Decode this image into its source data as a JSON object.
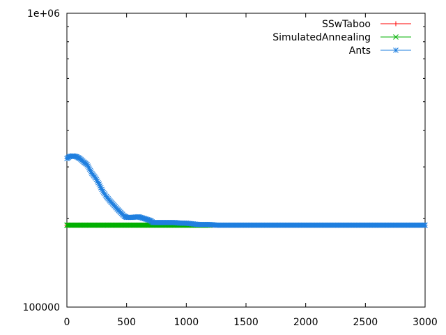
{
  "chart_data": {
    "type": "line",
    "title": "",
    "xlabel": "",
    "ylabel": "",
    "xlim": [
      0,
      3000
    ],
    "ylim": [
      100000,
      1000000
    ],
    "yscale": "log",
    "grid": false,
    "legend_position": "top-right",
    "x_ticks": [
      {
        "value": 0,
        "label": "0"
      },
      {
        "value": 500,
        "label": "500"
      },
      {
        "value": 1000,
        "label": "1000"
      },
      {
        "value": 1500,
        "label": "1500"
      },
      {
        "value": 2000,
        "label": "2000"
      },
      {
        "value": 2500,
        "label": "2500"
      },
      {
        "value": 3000,
        "label": "3000"
      }
    ],
    "y_tick_labels": [
      {
        "value": 1000000,
        "label": "1e+06"
      },
      {
        "value": 100000,
        "label": "100000"
      }
    ],
    "series": [
      {
        "name": "SSwTaboo",
        "color": "#ff0000",
        "marker": "plus",
        "points": [
          [
            0,
            190000
          ],
          [
            3000,
            190000
          ]
        ]
      },
      {
        "name": "SimulatedAnnealing",
        "color": "#00b000",
        "marker": "cross",
        "points": [
          [
            0,
            190000
          ],
          [
            1200,
            190000
          ]
        ]
      },
      {
        "name": "Ants",
        "color": "#1f7fdf",
        "marker": "star",
        "points": [
          [
            0,
            320000
          ],
          [
            20,
            325000
          ],
          [
            50,
            327000
          ],
          [
            80,
            325000
          ],
          [
            110,
            320000
          ],
          [
            140,
            312000
          ],
          [
            170,
            305000
          ],
          [
            190,
            295000
          ],
          [
            210,
            285000
          ],
          [
            240,
            275000
          ],
          [
            270,
            262000
          ],
          [
            300,
            248000
          ],
          [
            330,
            238000
          ],
          [
            360,
            230000
          ],
          [
            390,
            223000
          ],
          [
            420,
            216000
          ],
          [
            450,
            210000
          ],
          [
            480,
            204000
          ],
          [
            500,
            202000
          ],
          [
            550,
            202000
          ],
          [
            600,
            203000
          ],
          [
            650,
            200000
          ],
          [
            700,
            197000
          ],
          [
            720,
            194000
          ],
          [
            800,
            194000
          ],
          [
            900,
            194000
          ],
          [
            950,
            193000
          ],
          [
            1000,
            193000
          ],
          [
            1050,
            192000
          ],
          [
            1100,
            191000
          ],
          [
            1150,
            191000
          ],
          [
            1200,
            191000
          ],
          [
            1250,
            190000
          ],
          [
            1500,
            190000
          ],
          [
            2000,
            190000
          ],
          [
            2500,
            190000
          ],
          [
            3000,
            190000
          ]
        ]
      }
    ]
  }
}
